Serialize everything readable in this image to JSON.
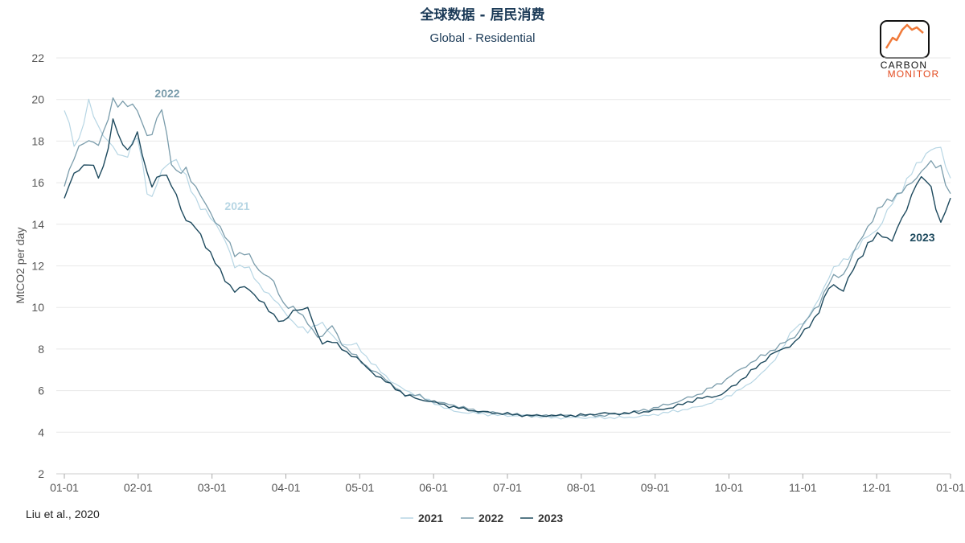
{
  "title": "全球数据 - 居民消费",
  "subtitle": "Global - Residential",
  "source": "Liu et al., 2020",
  "logo": {
    "line1": "CARBON",
    "line2": "MONITOR"
  },
  "chart_data": {
    "type": "line",
    "ylabel": "MtCO2 per day",
    "ylim": [
      2,
      22
    ],
    "yticks": [
      2,
      4,
      6,
      8,
      10,
      12,
      14,
      16,
      18,
      20,
      22
    ],
    "xticks": [
      "01-01",
      "02-01",
      "03-01",
      "04-01",
      "05-01",
      "06-01",
      "07-01",
      "08-01",
      "09-01",
      "10-01",
      "11-01",
      "12-01",
      "01-01"
    ],
    "x_unit": "day of year (0 = 01-01)",
    "legend_position": "bottom-center",
    "grid": true,
    "series": [
      {
        "name": "2021",
        "color": "#b7d6e4",
        "x": [
          0,
          5,
          10,
          15,
          20,
          25,
          30,
          35,
          40,
          45,
          50,
          55,
          60,
          65,
          70,
          75,
          80,
          85,
          90,
          95,
          100,
          105,
          110,
          115,
          120,
          125,
          130,
          135,
          140,
          145,
          150,
          160,
          170,
          180,
          190,
          200,
          210,
          220,
          230,
          240,
          250,
          260,
          270,
          280,
          290,
          300,
          305,
          310,
          315,
          320,
          325,
          330,
          335,
          340,
          345,
          350,
          355,
          360,
          364
        ],
        "values": [
          19.5,
          17.6,
          19.8,
          18.5,
          17.6,
          17.2,
          18.2,
          15.0,
          16.5,
          17.3,
          16.2,
          15.0,
          14.3,
          13.6,
          11.9,
          12.1,
          11.0,
          10.6,
          9.8,
          9.2,
          8.8,
          9.4,
          8.6,
          8.2,
          8.2,
          7.5,
          6.9,
          6.4,
          6.0,
          5.8,
          5.5,
          5.0,
          4.9,
          4.8,
          4.8,
          4.7,
          4.7,
          4.7,
          4.7,
          4.8,
          5.0,
          5.2,
          5.6,
          6.2,
          7.2,
          9.0,
          9.4,
          10.4,
          11.8,
          12.2,
          12.8,
          13.4,
          13.9,
          15.0,
          15.9,
          16.8,
          17.6,
          17.6,
          16.2
        ]
      },
      {
        "name": "2022",
        "color": "#7a9cab",
        "x": [
          0,
          5,
          10,
          15,
          20,
          25,
          30,
          35,
          40,
          45,
          50,
          55,
          60,
          65,
          70,
          75,
          80,
          85,
          90,
          95,
          100,
          105,
          110,
          115,
          120,
          125,
          130,
          135,
          140,
          145,
          150,
          160,
          170,
          180,
          190,
          200,
          210,
          220,
          230,
          240,
          250,
          260,
          270,
          280,
          290,
          300,
          305,
          310,
          315,
          320,
          325,
          330,
          335,
          340,
          345,
          350,
          355,
          360,
          364
        ],
        "values": [
          16.0,
          17.5,
          18.1,
          17.8,
          20.0,
          19.7,
          19.6,
          17.9,
          19.7,
          16.3,
          16.7,
          15.5,
          14.6,
          13.6,
          12.6,
          12.6,
          11.8,
          11.4,
          10.2,
          9.9,
          9.3,
          8.4,
          9.2,
          8.0,
          7.7,
          7.0,
          6.8,
          6.2,
          5.8,
          5.8,
          5.5,
          5.3,
          5.0,
          4.9,
          4.8,
          4.8,
          4.8,
          4.8,
          4.9,
          5.1,
          5.4,
          5.8,
          6.4,
          7.2,
          7.9,
          8.6,
          9.4,
          10.2,
          11.4,
          11.6,
          12.8,
          13.9,
          14.8,
          15.3,
          15.6,
          16.3,
          16.9,
          16.8,
          15.3
        ]
      },
      {
        "name": "2023",
        "color": "#1e4a5e",
        "x": [
          0,
          5,
          10,
          15,
          20,
          25,
          30,
          35,
          40,
          45,
          50,
          55,
          60,
          65,
          70,
          75,
          80,
          85,
          90,
          95,
          100,
          105,
          110,
          115,
          120,
          125,
          130,
          135,
          140,
          145,
          150,
          160,
          170,
          180,
          190,
          200,
          210,
          220,
          230,
          240,
          250,
          260,
          270,
          280,
          290,
          300,
          305,
          310,
          315,
          320,
          325,
          330,
          335,
          340,
          345,
          350,
          355,
          360,
          364
        ],
        "values": [
          15.3,
          16.6,
          17.0,
          16.1,
          19.0,
          17.4,
          18.4,
          15.8,
          16.5,
          15.7,
          14.2,
          13.7,
          12.6,
          11.5,
          10.8,
          11.0,
          10.4,
          9.7,
          9.3,
          9.9,
          10.0,
          8.3,
          8.4,
          7.9,
          7.6,
          7.0,
          6.6,
          6.2,
          5.8,
          5.6,
          5.5,
          5.2,
          5.0,
          4.9,
          4.8,
          4.8,
          4.8,
          4.9,
          4.9,
          5.0,
          5.2,
          5.6,
          5.8,
          6.7,
          7.7,
          8.3,
          9.0,
          9.8,
          11.2,
          10.8,
          12.1,
          13.0,
          13.6,
          13.2,
          14.5,
          16.0,
          16.2,
          14.0,
          15.2
        ]
      }
    ],
    "annotations": [
      {
        "text": "2022",
        "series": "2022"
      },
      {
        "text": "2021",
        "series": "2021"
      },
      {
        "text": "2023",
        "series": "2023"
      }
    ]
  }
}
